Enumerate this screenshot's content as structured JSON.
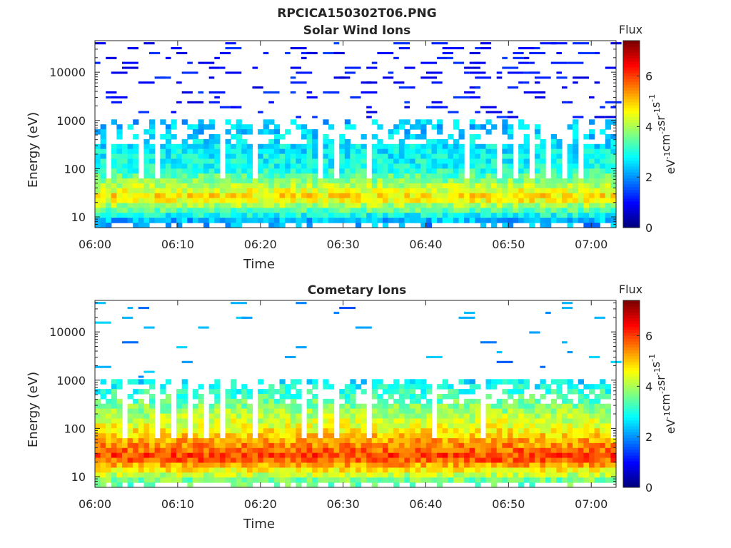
{
  "figure_title": "RPCICA150302T06.PNG",
  "colors": {
    "axis": "#262626",
    "colormap": "jet"
  },
  "chart_data": [
    {
      "type": "heatmap",
      "title": "Solar Wind Ions",
      "xlabel": "Time",
      "ylabel": "Energy (eV)",
      "yscale": "log",
      "ylim": [
        6,
        45000
      ],
      "xlim": [
        "06:00",
        "07:03"
      ],
      "xticks": [
        "06:00",
        "06:10",
        "06:20",
        "06:30",
        "06:40",
        "06:50",
        "07:00"
      ],
      "yticks": [
        10,
        100,
        1000,
        10000
      ],
      "ytick_labels": [
        "10",
        "100",
        "1000",
        "10000"
      ],
      "colorbar": {
        "title": "Flux",
        "label": "eV-1cm-2sr-1s-1",
        "label_base": [
          "eV",
          "cm",
          "sr",
          "s"
        ],
        "label_exp": [
          "-1",
          "-2",
          "-1",
          "-1"
        ],
        "range": [
          0,
          7.4
        ],
        "ticks": [
          0,
          2,
          4,
          6
        ],
        "tick_labels": [
          "0",
          "2",
          "4",
          "6"
        ]
      },
      "profile": {
        "core_energy_eV": 25,
        "core_flux": 4.9,
        "low_tail_flux_at_8eV": 2.1,
        "flux_at_100eV": 2.9,
        "flux_at_1000eV": 2.3,
        "sparse_above_eV": 1000,
        "sparse_flux_range": [
          0.6,
          1.4
        ]
      },
      "grid": false,
      "legend": "none"
    },
    {
      "type": "heatmap",
      "title": "Cometary Ions",
      "xlabel": "Time",
      "ylabel": "Energy (eV)",
      "yscale": "log",
      "ylim": [
        6,
        45000
      ],
      "xlim": [
        "06:00",
        "07:03"
      ],
      "xticks": [
        "06:00",
        "06:10",
        "06:20",
        "06:30",
        "06:40",
        "06:50",
        "07:00"
      ],
      "yticks": [
        10,
        100,
        1000,
        10000
      ],
      "ytick_labels": [
        "10",
        "100",
        "1000",
        "10000"
      ],
      "colorbar": {
        "title": "Flux",
        "label": "eV-1cm-2sr-1s-1",
        "label_base": [
          "eV",
          "cm",
          "sr",
          "s"
        ],
        "label_exp": [
          "-1",
          "-2",
          "-1",
          "-1"
        ],
        "range": [
          0,
          7.4
        ],
        "ticks": [
          0,
          2,
          4,
          6
        ],
        "tick_labels": [
          "0",
          "2",
          "4",
          "6"
        ]
      },
      "profile": {
        "core_energy_eV": 25,
        "core_flux": 6.1,
        "low_tail_flux_at_8eV": 3.5,
        "flux_at_100eV": 4.6,
        "flux_at_1000eV": 2.6,
        "sparse_above_eV": 1000,
        "sparse_flux_range": [
          1.5,
          2.5
        ]
      },
      "grid": false,
      "legend": "none"
    }
  ]
}
